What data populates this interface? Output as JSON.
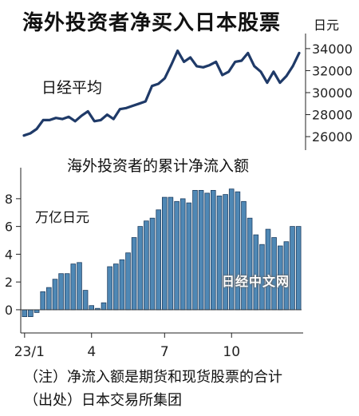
{
  "title": "海外投资者净买入日本股票",
  "watermark": "日经中文网",
  "notes": [
    "（注）净流入额是期货和现货股票的合计",
    "（出处）日本交易所集团"
  ],
  "chart_data": [
    {
      "type": "line",
      "title": "",
      "series": [
        {
          "name": "日经平均",
          "values": [
            26100,
            26300,
            26700,
            27500,
            27500,
            27700,
            27600,
            27800,
            27400,
            27900,
            28300,
            27400,
            27500,
            28000,
            27600,
            28500,
            28600,
            28800,
            29000,
            29200,
            30600,
            30800,
            31300,
            32500,
            33800,
            32800,
            33200,
            32400,
            32300,
            32500,
            32800,
            31600,
            31900,
            32800,
            32900,
            33600,
            32400,
            31900,
            30900,
            31900,
            30900,
            31500,
            32400,
            33600
          ]
        }
      ],
      "unit": "日元",
      "ylim": [
        25500,
        34500
      ],
      "yticks": [
        "34000",
        "32000",
        "30000",
        "28000",
        "26000"
      ],
      "grid": false
    },
    {
      "type": "bar",
      "title": "海外投资者的累计净流入额",
      "ylabel": "万亿日元",
      "values": [
        -0.5,
        -0.5,
        -0.2,
        1.3,
        1.6,
        2.2,
        2.6,
        2.6,
        3.3,
        3.4,
        1.4,
        0.3,
        0.1,
        0.5,
        3.1,
        3.3,
        3.6,
        4.1,
        5.2,
        6.0,
        6.4,
        6.6,
        7.2,
        8.1,
        8.1,
        7.8,
        8.0,
        7.7,
        8.6,
        8.6,
        8.4,
        8.6,
        8.2,
        8.3,
        8.7,
        8.5,
        7.8,
        6.6,
        5.4,
        4.7,
        5.8,
        5.2,
        4.6,
        4.9,
        6.0,
        6.0
      ],
      "xticks": [
        "23/1",
        "4",
        "7",
        "10"
      ],
      "yticks": [
        "8",
        "6",
        "4",
        "2",
        "0"
      ],
      "ylim": [
        -1.5,
        9.2
      ],
      "colors": {
        "bar_fill": "#4f88b5",
        "bar_edge": "#1f3f62",
        "line": "#1f3a68"
      }
    }
  ]
}
